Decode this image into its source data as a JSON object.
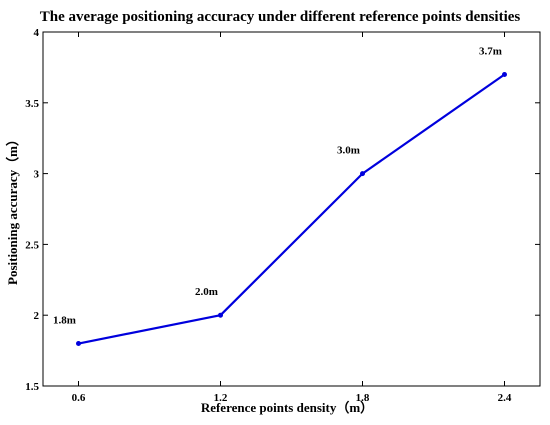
{
  "chart_data": {
    "type": "line",
    "title": "The average positioning accuracy under different reference points densities",
    "xlabel": "Reference points density（m）",
    "ylabel": "Positioning accuracy（m）",
    "x": [
      0.6,
      1.2,
      1.8,
      2.4
    ],
    "series": [
      {
        "values": [
          1.8,
          2.0,
          3.0,
          3.7
        ],
        "data_labels": [
          "1.8m",
          "2.0m",
          "3.0m",
          "3.7m"
        ],
        "color": "#0000dd"
      }
    ],
    "xlim": [
      0.45,
      2.55
    ],
    "ylim": [
      1.5,
      4
    ],
    "x_ticks": [
      0.6,
      1.2,
      1.8,
      2.4
    ],
    "x_tick_labels": [
      "0.6",
      "1.2",
      "1.8",
      "2.4"
    ],
    "y_ticks": [
      1.5,
      2,
      2.5,
      3,
      3.5,
      4
    ],
    "y_tick_labels": [
      "1.5",
      "2",
      "2.5",
      "3",
      "3.5",
      "4"
    ],
    "grid": false,
    "legend": "none"
  }
}
